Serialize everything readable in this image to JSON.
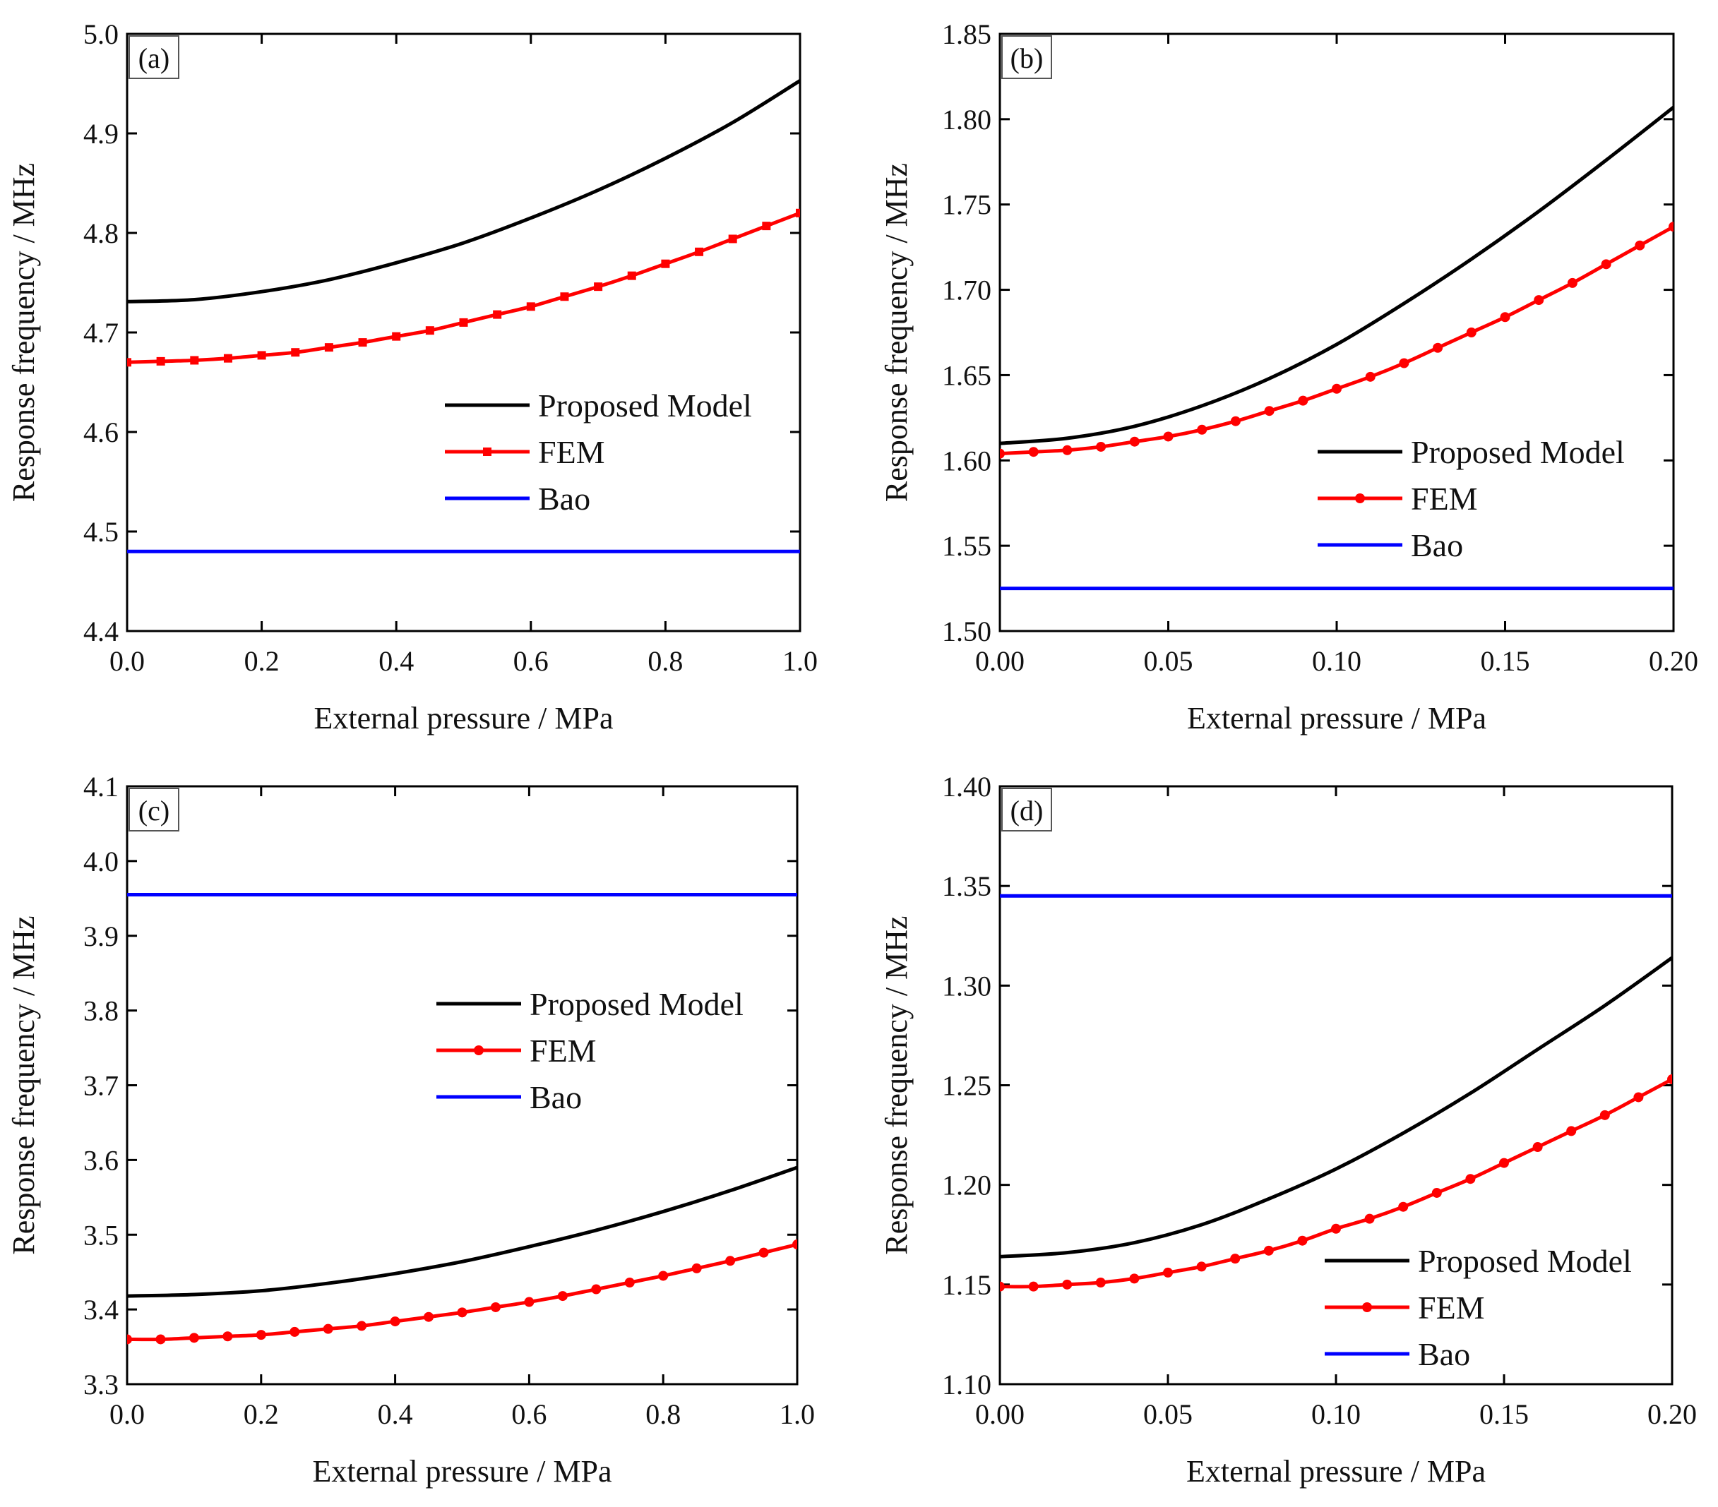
{
  "figure": {
    "series_names": {
      "model": "Proposed Model",
      "fem": "FEM",
      "bao": "Bao"
    },
    "colors": {
      "model": "#000000",
      "fem": "#ff0000",
      "bao": "#0000ff"
    },
    "markers": {
      "a": "square",
      "b": "circle",
      "c": "circle",
      "d": "circle"
    }
  },
  "chart_data": [
    {
      "type": "line",
      "panel": "(a)",
      "xlabel": "External pressure / MPa",
      "ylabel": "Response frequency / MHz",
      "xlim": [
        0.0,
        1.0
      ],
      "ylim": [
        4.4,
        5.0
      ],
      "xticks": [
        "0.0",
        "0.2",
        "0.4",
        "0.6",
        "0.8",
        "1.0"
      ],
      "yticks": [
        "4.4",
        "4.5",
        "4.6",
        "4.7",
        "4.8",
        "4.9",
        "5.0"
      ],
      "legend": "center-right",
      "series": [
        {
          "name": "Proposed Model",
          "x": [
            0.0,
            0.1,
            0.2,
            0.3,
            0.4,
            0.5,
            0.6,
            0.7,
            0.8,
            0.9,
            1.0
          ],
          "y": [
            4.731,
            4.733,
            4.741,
            4.753,
            4.77,
            4.79,
            4.815,
            4.843,
            4.875,
            4.911,
            4.953
          ]
        },
        {
          "name": "FEM",
          "x": [
            0.0,
            0.05,
            0.1,
            0.15,
            0.2,
            0.25,
            0.3,
            0.35,
            0.4,
            0.45,
            0.5,
            0.55,
            0.6,
            0.65,
            0.7,
            0.75,
            0.8,
            0.85,
            0.9,
            0.95,
            1.0
          ],
          "y": [
            4.67,
            4.671,
            4.672,
            4.674,
            4.677,
            4.68,
            4.685,
            4.69,
            4.696,
            4.702,
            4.71,
            4.718,
            4.726,
            4.736,
            4.746,
            4.757,
            4.769,
            4.781,
            4.794,
            4.807,
            4.82
          ]
        },
        {
          "name": "Bao",
          "x": [
            0.0,
            1.0
          ],
          "y": [
            4.48,
            4.48
          ]
        }
      ]
    },
    {
      "type": "line",
      "panel": "(b)",
      "xlabel": "External pressure / MPa",
      "ylabel": "Response frequency / MHz",
      "xlim": [
        0.0,
        0.2
      ],
      "ylim": [
        1.5,
        1.85
      ],
      "xticks": [
        "0.00",
        "0.05",
        "0.10",
        "0.15",
        "0.20"
      ],
      "yticks": [
        "1.50",
        "1.55",
        "1.60",
        "1.65",
        "1.70",
        "1.75",
        "1.80",
        "1.85"
      ],
      "legend": "center-right",
      "series": [
        {
          "name": "Proposed Model",
          "x": [
            0.0,
            0.02,
            0.04,
            0.06,
            0.08,
            0.1,
            0.12,
            0.14,
            0.16,
            0.18,
            0.2
          ],
          "y": [
            1.61,
            1.613,
            1.62,
            1.632,
            1.648,
            1.668,
            1.692,
            1.718,
            1.746,
            1.776,
            1.807
          ]
        },
        {
          "name": "FEM",
          "x": [
            0.0,
            0.01,
            0.02,
            0.03,
            0.04,
            0.05,
            0.06,
            0.07,
            0.08,
            0.09,
            0.1,
            0.11,
            0.12,
            0.13,
            0.14,
            0.15,
            0.16,
            0.17,
            0.18,
            0.19,
            0.2
          ],
          "y": [
            1.604,
            1.605,
            1.606,
            1.608,
            1.611,
            1.614,
            1.618,
            1.623,
            1.629,
            1.635,
            1.642,
            1.649,
            1.657,
            1.666,
            1.675,
            1.684,
            1.694,
            1.704,
            1.715,
            1.726,
            1.737
          ]
        },
        {
          "name": "Bao",
          "x": [
            0.0,
            0.2
          ],
          "y": [
            1.525,
            1.525
          ]
        }
      ]
    },
    {
      "type": "line",
      "panel": "(c)",
      "xlabel": "External pressure / MPa",
      "ylabel": "Response frequency / MHz",
      "xlim": [
        0.0,
        1.0
      ],
      "ylim": [
        3.3,
        4.1
      ],
      "xticks": [
        "0.0",
        "0.2",
        "0.4",
        "0.6",
        "0.8",
        "1.0"
      ],
      "yticks": [
        "3.3",
        "3.4",
        "3.5",
        "3.6",
        "3.7",
        "3.8",
        "3.9",
        "4.0",
        "4.1"
      ],
      "legend": "center-right",
      "series": [
        {
          "name": "Proposed Model",
          "x": [
            0.0,
            0.1,
            0.2,
            0.3,
            0.4,
            0.5,
            0.6,
            0.7,
            0.8,
            0.9,
            1.0
          ],
          "y": [
            3.418,
            3.42,
            3.425,
            3.435,
            3.448,
            3.464,
            3.484,
            3.506,
            3.531,
            3.559,
            3.59
          ]
        },
        {
          "name": "FEM",
          "x": [
            0.0,
            0.05,
            0.1,
            0.15,
            0.2,
            0.25,
            0.3,
            0.35,
            0.4,
            0.45,
            0.5,
            0.55,
            0.6,
            0.65,
            0.7,
            0.75,
            0.8,
            0.85,
            0.9,
            0.95,
            1.0
          ],
          "y": [
            3.36,
            3.36,
            3.362,
            3.364,
            3.366,
            3.37,
            3.374,
            3.378,
            3.384,
            3.39,
            3.396,
            3.403,
            3.41,
            3.418,
            3.427,
            3.436,
            3.445,
            3.455,
            3.465,
            3.476,
            3.487
          ]
        },
        {
          "name": "Bao",
          "x": [
            0.0,
            1.0
          ],
          "y": [
            3.955,
            3.955
          ]
        }
      ]
    },
    {
      "type": "line",
      "panel": "(d)",
      "xlabel": "External pressure / MPa",
      "ylabel": "Response frequency / MHz",
      "xlim": [
        0.0,
        0.2
      ],
      "ylim": [
        1.1,
        1.4
      ],
      "xticks": [
        "0.00",
        "0.05",
        "0.10",
        "0.15",
        "0.20"
      ],
      "yticks": [
        "1.10",
        "1.15",
        "1.20",
        "1.25",
        "1.30",
        "1.35",
        "1.40"
      ],
      "legend": "bottom-right",
      "series": [
        {
          "name": "Proposed Model",
          "x": [
            0.0,
            0.02,
            0.04,
            0.06,
            0.08,
            0.1,
            0.12,
            0.14,
            0.16,
            0.18,
            0.2
          ],
          "y": [
            1.164,
            1.166,
            1.171,
            1.18,
            1.193,
            1.208,
            1.226,
            1.246,
            1.268,
            1.29,
            1.314
          ]
        },
        {
          "name": "FEM",
          "x": [
            0.0,
            0.01,
            0.02,
            0.03,
            0.04,
            0.05,
            0.06,
            0.07,
            0.08,
            0.09,
            0.1,
            0.11,
            0.12,
            0.13,
            0.14,
            0.15,
            0.16,
            0.17,
            0.18,
            0.19,
            0.2
          ],
          "y": [
            1.149,
            1.149,
            1.15,
            1.151,
            1.153,
            1.156,
            1.159,
            1.163,
            1.167,
            1.172,
            1.178,
            1.183,
            1.189,
            1.196,
            1.203,
            1.211,
            1.219,
            1.227,
            1.235,
            1.244,
            1.253
          ]
        },
        {
          "name": "Bao",
          "x": [
            0.0,
            0.2
          ],
          "y": [
            1.345,
            1.345
          ]
        }
      ]
    }
  ]
}
